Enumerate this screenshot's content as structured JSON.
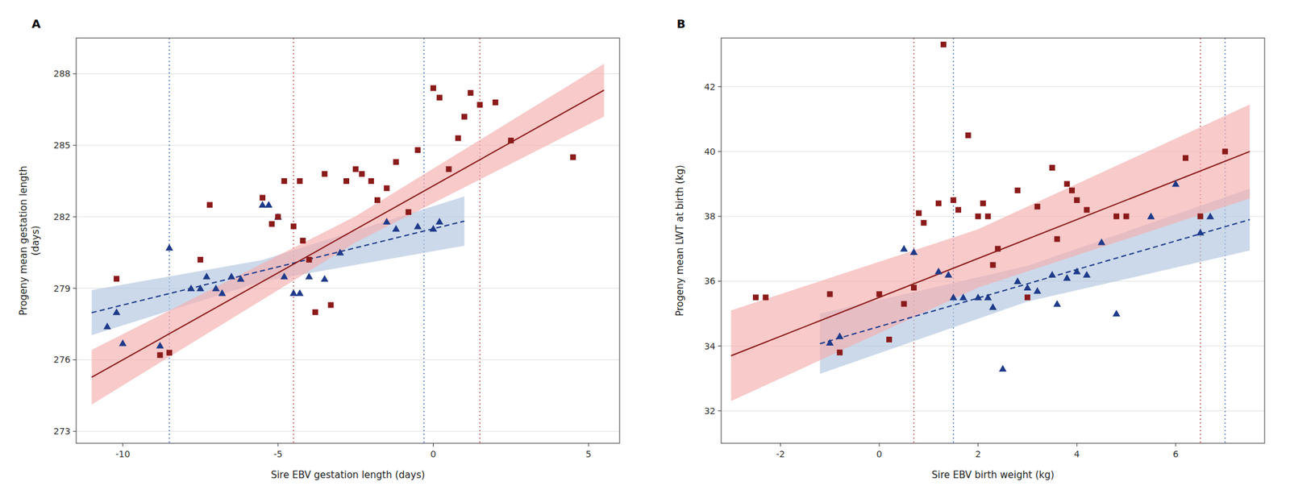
{
  "chart_data": [
    {
      "type": "scatter",
      "title": "A",
      "x_label": "Sire EBV gestation length (days)",
      "y_label": "Progeny mean gestation length\n(days)",
      "xlim": [
        -11.5,
        6.0
      ],
      "ylim": [
        272.5,
        289.5
      ],
      "xticks": [
        -10,
        -5,
        0,
        5
      ],
      "yticks": [
        273,
        276,
        279,
        282,
        285,
        288
      ],
      "grid": true,
      "series": [
        {
          "type": "vline",
          "color": "#4472C4",
          "line_style": "dotted",
          "x": [
            -8.5,
            -0.3
          ]
        },
        {
          "type": "vline",
          "color": "#C0504D",
          "line_style": "dotted",
          "x": [
            -4.5,
            1.5
          ]
        },
        {
          "type": "area",
          "color": "#B0C4DE",
          "x": [
            -11.0,
            -5.5,
            1.0
          ],
          "lower": [
            277.035,
            279.29,
            280.785
          ],
          "upper": [
            278.925,
            280.19,
            282.855
          ]
        },
        {
          "type": "area",
          "color": "#F4AEAD",
          "x": [
            -11.0,
            -2.5,
            5.5
          ],
          "lower": [
            274.125,
            280.925,
            286.205
          ],
          "upper": [
            276.415,
            282.025,
            288.425
          ]
        },
        {
          "type": "line",
          "color": "#1E3A8A",
          "line_style": "dashed",
          "x": [
            -11.0,
            1.0
          ],
          "values": [
            277.98,
            281.82
          ]
        },
        {
          "type": "line",
          "color": "#8B1A1A",
          "line_style": "solid",
          "x": [
            -11.0,
            5.5
          ],
          "values": [
            275.27,
            287.315
          ]
        },
        {
          "type": "scatter",
          "color": "#1E3A8A",
          "marker": "triangle",
          "x": [
            -10.5,
            -10.2,
            -10.0,
            -8.8,
            -8.5,
            -7.8,
            -7.5,
            -7.3,
            -7.0,
            -6.8,
            -6.5,
            -6.2,
            -5.5,
            -5.3,
            -5.0,
            -4.8,
            -4.5,
            -4.3,
            -4.0,
            -3.5,
            -3.0,
            -1.5,
            -1.2,
            -0.5,
            0.0,
            0.2
          ],
          "values": [
            277.4,
            278.0,
            276.7,
            276.6,
            280.7,
            279.0,
            279.0,
            279.5,
            279.0,
            278.8,
            279.5,
            279.4,
            282.5,
            282.5,
            282.0,
            279.5,
            278.8,
            278.8,
            279.5,
            279.4,
            280.5,
            281.8,
            281.5,
            281.6,
            281.5,
            281.8
          ]
        },
        {
          "type": "scatter",
          "color": "#8B1A1A",
          "marker": "square",
          "x": [
            -10.2,
            -8.8,
            -8.5,
            -7.5,
            -7.2,
            -5.5,
            -5.2,
            -5.0,
            -4.8,
            -4.5,
            -4.3,
            -4.2,
            -4.0,
            -3.8,
            -3.5,
            -3.3,
            -2.8,
            -2.5,
            -2.3,
            -2.0,
            -1.8,
            -1.5,
            -1.2,
            -0.8,
            -0.5,
            0.0,
            0.2,
            0.5,
            0.8,
            1.0,
            1.2,
            1.5,
            2.0,
            2.5,
            4.5
          ],
          "values": [
            279.4,
            276.2,
            276.3,
            280.2,
            282.5,
            282.8,
            281.7,
            282.0,
            283.5,
            281.6,
            283.5,
            281.0,
            280.2,
            278.0,
            283.8,
            278.3,
            283.5,
            284.0,
            283.8,
            283.5,
            282.7,
            283.2,
            284.3,
            282.2,
            284.8,
            287.4,
            287.0,
            284.0,
            285.3,
            286.2,
            287.2,
            286.7,
            286.8,
            285.2,
            284.5
          ]
        }
      ]
    },
    {
      "type": "scatter",
      "title": "B",
      "x_label": "Sire EBV birth weight (kg)",
      "y_label": "Progeny mean LWT at birth (kg)",
      "xlim": [
        -3.2,
        7.8
      ],
      "ylim": [
        31.0,
        43.5
      ],
      "xticks": [
        -2,
        0,
        2,
        4,
        6
      ],
      "yticks": [
        32,
        34,
        36,
        38,
        40,
        42
      ],
      "grid": true,
      "series": [
        {
          "type": "vline",
          "color": "#4472C4",
          "line_style": "dotted",
          "x": [
            1.5,
            7.0
          ]
        },
        {
          "type": "vline",
          "color": "#C0504D",
          "line_style": "dotted",
          "x": [
            0.7,
            6.5
          ]
        },
        {
          "type": "area",
          "color": "#B0C4DE",
          "x": [
            -1.2,
            3.0,
            7.5
          ],
          "lower": [
            33.144,
            35.37,
            36.945
          ],
          "upper": [
            35.0,
            36.47,
            38.855
          ]
        },
        {
          "type": "area",
          "color": "#F4AEAD",
          "x": [
            -3.0,
            2.0,
            7.5
          ],
          "lower": [
            32.3,
            35.8,
            38.55
          ],
          "upper": [
            35.1,
            37.6,
            41.45
          ]
        },
        {
          "type": "line",
          "color": "#1E3A8A",
          "line_style": "dashed",
          "x": [
            -1.2,
            7.5
          ],
          "values": [
            34.072,
            37.9
          ]
        },
        {
          "type": "line",
          "color": "#8B1A1A",
          "line_style": "solid",
          "x": [
            -3.0,
            7.5
          ],
          "values": [
            33.7,
            40.0
          ]
        },
        {
          "type": "scatter",
          "color": "#1E3A8A",
          "marker": "triangle",
          "x": [
            -1.0,
            -0.8,
            0.5,
            0.7,
            1.2,
            1.4,
            1.5,
            1.7,
            2.0,
            2.2,
            2.3,
            2.5,
            2.8,
            3.0,
            3.2,
            3.5,
            3.6,
            3.8,
            4.0,
            4.2,
            4.5,
            4.8,
            5.5,
            6.0,
            6.5,
            6.7
          ],
          "values": [
            34.1,
            34.3,
            37.0,
            36.9,
            36.3,
            36.2,
            35.5,
            35.5,
            35.5,
            35.5,
            35.2,
            33.3,
            36.0,
            35.8,
            35.7,
            36.2,
            35.3,
            36.1,
            36.3,
            36.2,
            37.2,
            35.0,
            38.0,
            39.0,
            37.5,
            38.0
          ]
        },
        {
          "type": "scatter",
          "color": "#8B1A1A",
          "marker": "square",
          "x": [
            -2.5,
            -2.3,
            -1.0,
            -0.8,
            0.0,
            0.2,
            0.5,
            0.7,
            0.8,
            0.9,
            1.2,
            1.3,
            1.5,
            1.6,
            1.8,
            2.0,
            2.1,
            2.2,
            2.3,
            2.4,
            2.8,
            3.0,
            3.2,
            3.5,
            3.6,
            3.8,
            3.9,
            4.0,
            4.2,
            4.8,
            5.0,
            6.2,
            6.5,
            7.0
          ],
          "values": [
            35.5,
            35.5,
            35.6,
            33.8,
            35.6,
            34.2,
            35.3,
            35.8,
            38.1,
            37.8,
            38.4,
            43.3,
            38.5,
            38.2,
            40.5,
            38.0,
            38.4,
            38.0,
            36.5,
            37.0,
            38.8,
            35.5,
            38.3,
            39.5,
            37.3,
            39.0,
            38.8,
            38.5,
            38.2,
            38.0,
            38.0,
            39.8,
            38.0,
            40.0
          ]
        }
      ]
    }
  ]
}
